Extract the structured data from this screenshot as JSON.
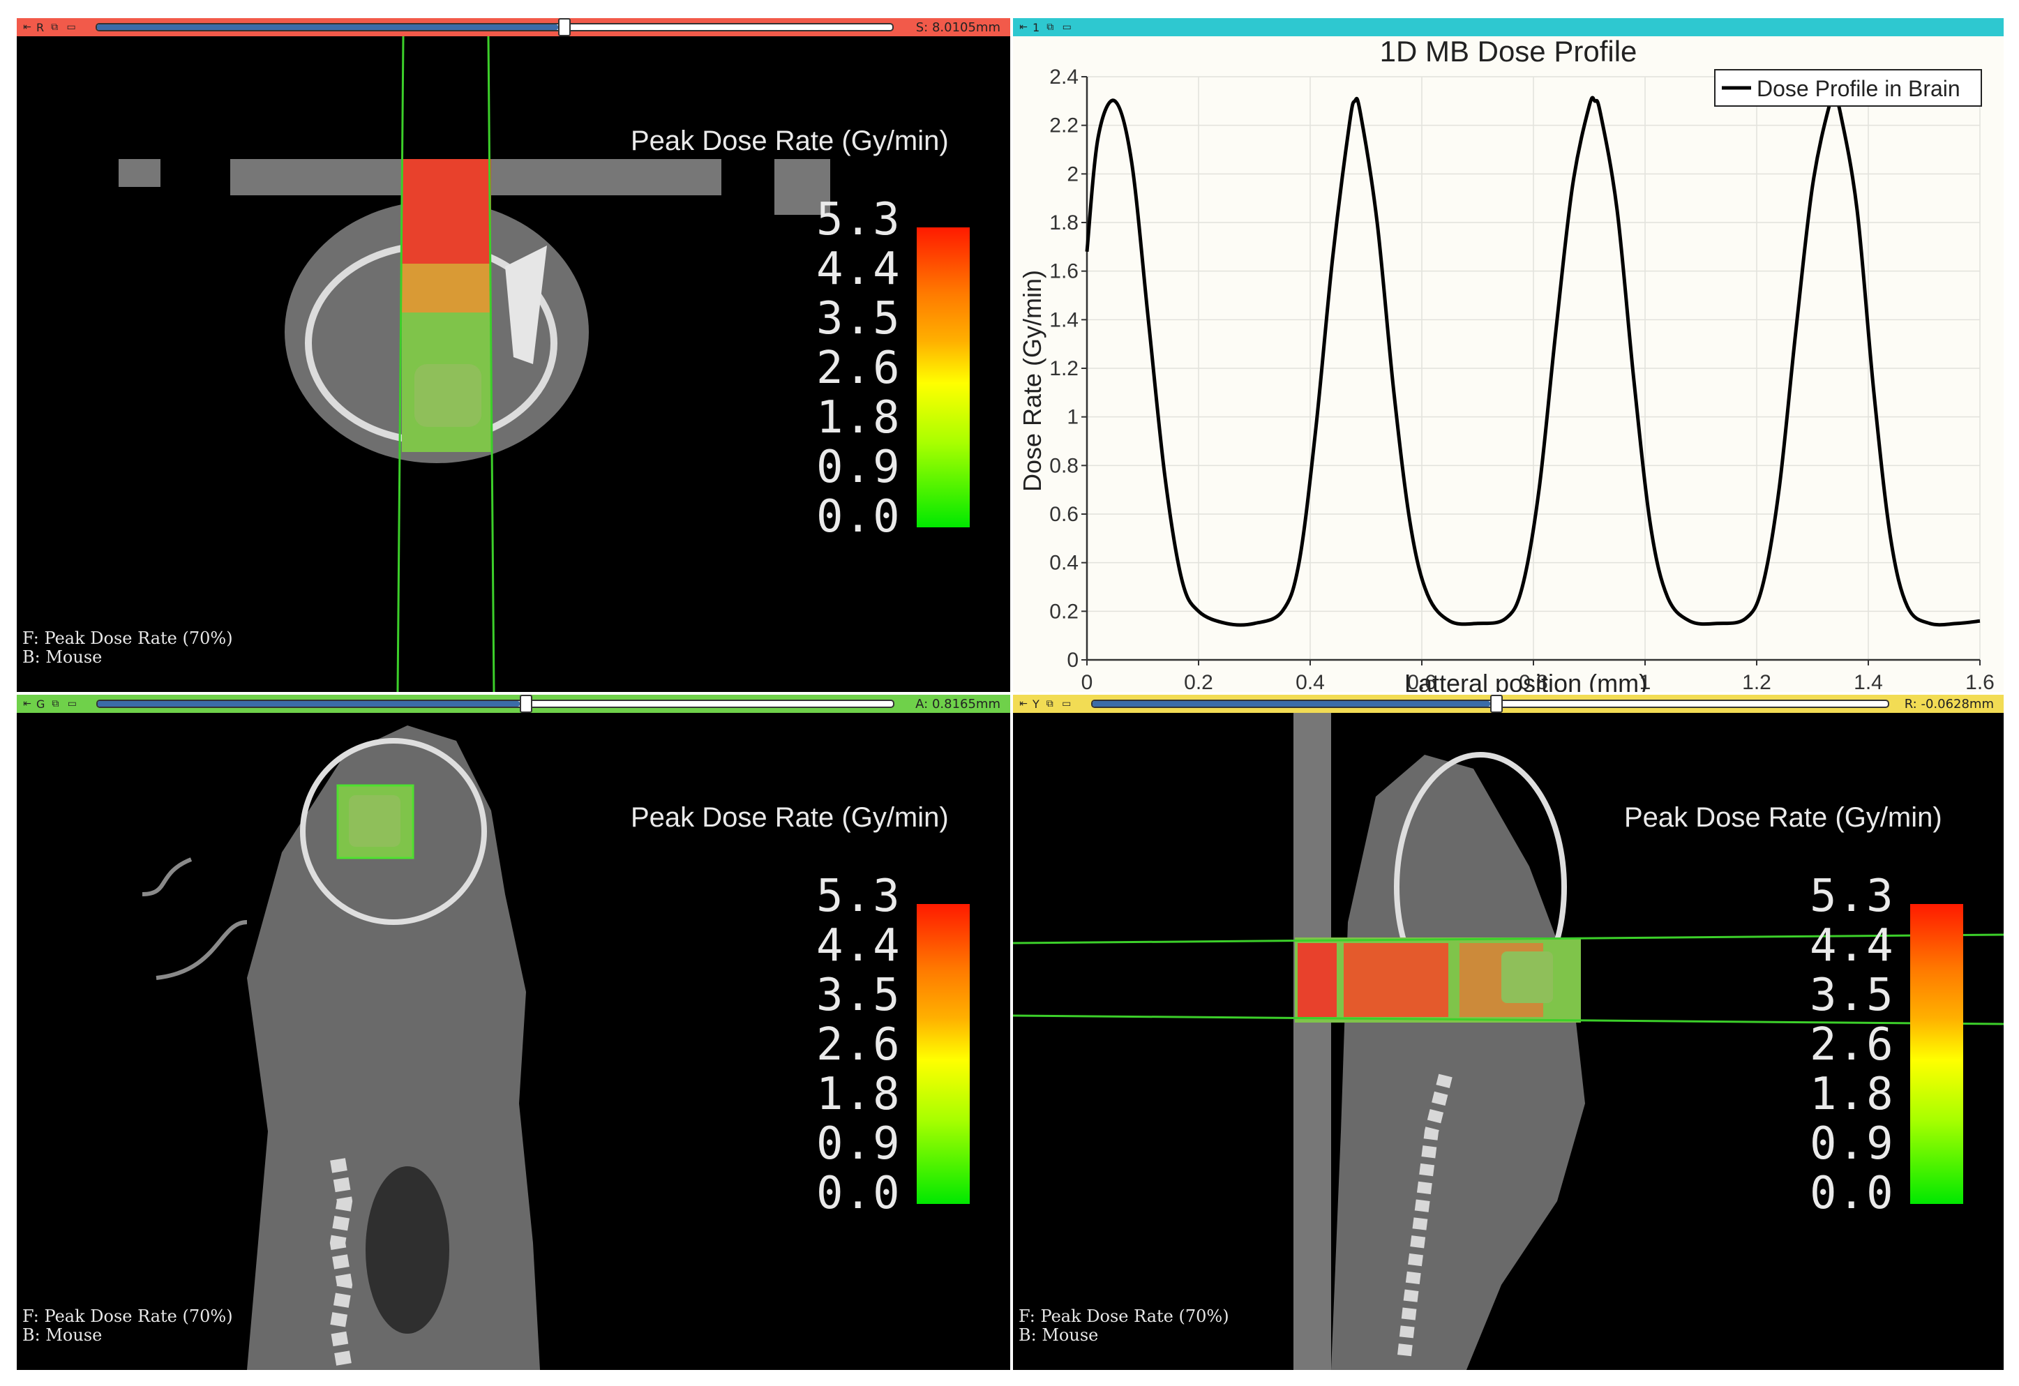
{
  "views": {
    "red": {
      "color": "#f25a4a",
      "tag": "R",
      "offset": "S: 8.0105mm",
      "slider_fraction": 0.58,
      "corner_fg": "F: Peak Dose Rate (70%)",
      "corner_bg": "B: Mouse",
      "colorbar_title": "Peak Dose Rate (Gy/min)",
      "colorbar_labels": [
        "5.3",
        "4.4",
        "3.5",
        "2.6",
        "1.8",
        "0.9",
        "0.0"
      ]
    },
    "chart": {
      "color": "#2ec8d0",
      "tag": "1"
    },
    "green": {
      "color": "#6fd14a",
      "tag": "G",
      "offset": "A: 0.8165mm",
      "slider_fraction": 0.53,
      "corner_fg": "F: Peak Dose Rate (70%)",
      "corner_bg": "B: Mouse",
      "colorbar_title": "Peak Dose Rate (Gy/min)",
      "colorbar_labels": [
        "5.3",
        "4.4",
        "3.5",
        "2.6",
        "1.8",
        "0.9",
        "0.0"
      ]
    },
    "yellow": {
      "color": "#f2dc54",
      "tag": "Y",
      "offset": "R: -0.0628mm",
      "slider_fraction": 0.5,
      "corner_fg": "F: Peak Dose Rate (70%)",
      "corner_bg": "B: Mouse",
      "colorbar_title": "Peak Dose Rate (Gy/min)",
      "colorbar_labels": [
        "5.3",
        "4.4",
        "3.5",
        "2.6",
        "1.8",
        "0.9",
        "0.0"
      ]
    }
  },
  "icons": {
    "pin": "pin-icon",
    "link": "link-icon",
    "window": "window-icon"
  },
  "chart_data": {
    "type": "line",
    "title": "1D MB Dose Profile",
    "xlabel": "Latteral position (mm)",
    "ylabel": "Dose Rate (Gy/min)",
    "xlim": [
      0,
      1.6
    ],
    "ylim": [
      0,
      2.4
    ],
    "x_ticks": [
      "0",
      "0.2",
      "0.4",
      "0.6",
      "0.8",
      "1",
      "1.2",
      "1.4",
      "1.6"
    ],
    "y_ticks": [
      "0",
      "0.2",
      "0.4",
      "0.6",
      "0.8",
      "1",
      "1.2",
      "1.4",
      "1.6",
      "1.8",
      "2",
      "2.2",
      "2.4"
    ],
    "grid": true,
    "legend_position": "top-right",
    "series": [
      {
        "name": "Dose Profile in Brain",
        "color": "#000000",
        "x": [
          0,
          0.02,
          0.05,
          0.08,
          0.11,
          0.14,
          0.17,
          0.2,
          0.25,
          0.3,
          0.35,
          0.38,
          0.41,
          0.44,
          0.47,
          0.48,
          0.49,
          0.52,
          0.55,
          0.58,
          0.61,
          0.65,
          0.7,
          0.75,
          0.78,
          0.81,
          0.84,
          0.87,
          0.9,
          0.91,
          0.92,
          0.95,
          0.98,
          1.01,
          1.04,
          1.08,
          1.13,
          1.18,
          1.21,
          1.24,
          1.27,
          1.3,
          1.33,
          1.34,
          1.35,
          1.38,
          1.41,
          1.44,
          1.47,
          1.51,
          1.56,
          1.6
        ],
        "y": [
          1.68,
          2.15,
          2.3,
          2.05,
          1.4,
          0.75,
          0.33,
          0.2,
          0.15,
          0.15,
          0.2,
          0.4,
          0.95,
          1.65,
          2.2,
          2.3,
          2.25,
          1.8,
          1.1,
          0.55,
          0.27,
          0.16,
          0.15,
          0.17,
          0.3,
          0.7,
          1.35,
          1.95,
          2.28,
          2.3,
          2.25,
          1.85,
          1.15,
          0.55,
          0.26,
          0.16,
          0.15,
          0.17,
          0.3,
          0.7,
          1.35,
          1.95,
          2.28,
          2.3,
          2.25,
          1.85,
          1.1,
          0.5,
          0.22,
          0.15,
          0.15,
          0.16
        ]
      }
    ]
  }
}
